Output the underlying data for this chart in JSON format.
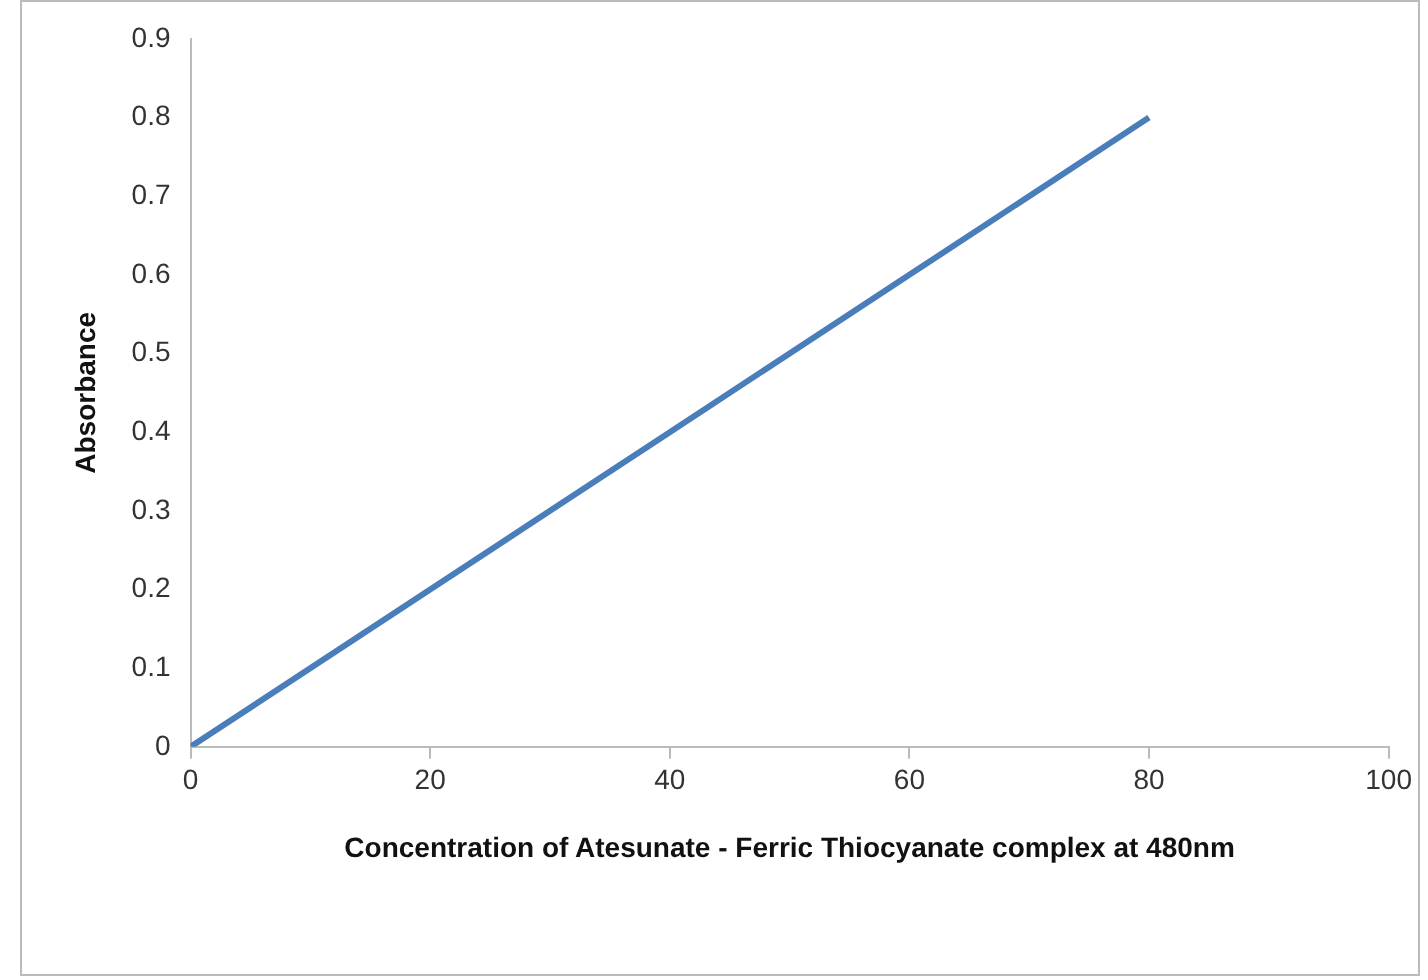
{
  "chart_data": {
    "type": "line",
    "xlabel": "Concentration of Atesunate - Ferric Thiocyanate complex at 480nm",
    "ylabel": "Absorbance",
    "x": [
      0,
      20,
      40,
      60,
      80
    ],
    "series": [
      {
        "color": "#4a7ebb",
        "values": [
          0,
          0.2,
          0.4,
          0.6,
          0.8
        ]
      }
    ],
    "xlim": [
      0,
      100
    ],
    "xticks": [
      0,
      20,
      40,
      60,
      80,
      100
    ],
    "ylim": [
      0,
      0.9
    ],
    "yticks": [
      0,
      0.1,
      0.2,
      0.3,
      0.4,
      0.5,
      0.6,
      0.7,
      0.8,
      0.9
    ],
    "grid": false,
    "legend": false,
    "marker": "none",
    "line_style": "solid"
  }
}
